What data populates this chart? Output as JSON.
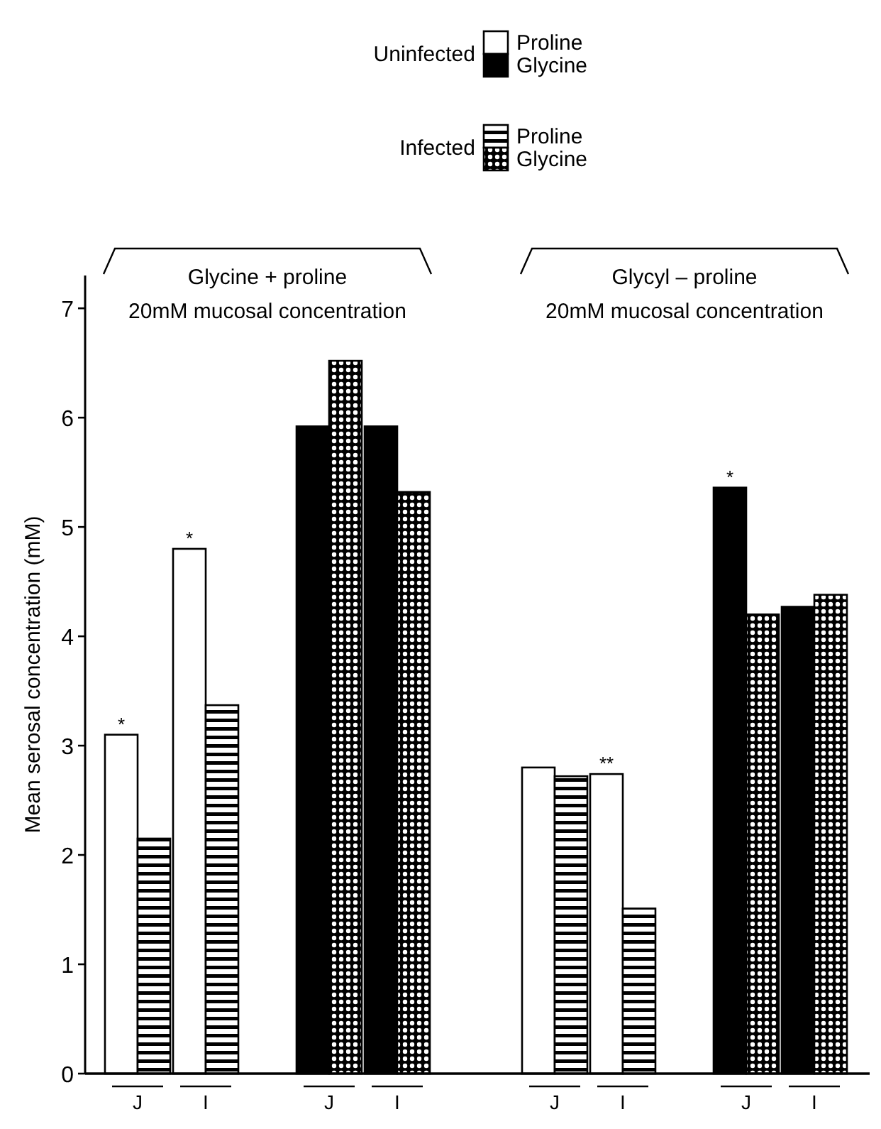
{
  "chart_data": {
    "type": "bar",
    "ylabel": "Mean serosal concentration (mM)",
    "categories": [
      "J",
      "I",
      "J",
      "I",
      "J",
      "I",
      "J",
      "I"
    ],
    "series": [
      {
        "name": "Proline",
        "color": "#ffffff",
        "values": [
          3.1,
          4.8,
          null,
          null,
          2.8,
          2.74,
          null,
          null
        ],
        "value_labels": [
          "*",
          "*",
          null,
          null,
          null,
          "**",
          null,
          null
        ]
      },
      {
        "name": "Proline",
        "color": "#000000",
        "values": [
          2.15,
          3.37,
          null,
          null,
          2.72,
          1.51,
          null,
          null
        ]
      },
      {
        "name": "Glycine",
        "color": "#000000",
        "values": [
          null,
          null,
          5.92,
          5.92,
          null,
          null,
          5.36,
          4.27
        ],
        "value_labels": [
          null,
          null,
          null,
          null,
          null,
          null,
          "*",
          null
        ]
      },
      {
        "name": "Glycine",
        "color": "#000000",
        "values": [
          null,
          null,
          6.52,
          5.32,
          null,
          null,
          4.2,
          4.38
        ]
      }
    ],
    "ylim": [
      0,
      7.3
    ],
    "yticks": [
      0,
      1,
      2,
      3,
      4,
      5,
      6,
      7
    ],
    "legend": "top right",
    "annotations": [
      "Glycine + proline\n20mM mucosal concentration",
      "Glycyl – proline\n20mM mucosal concentration",
      "Uninfected",
      "Infected"
    ]
  }
}
